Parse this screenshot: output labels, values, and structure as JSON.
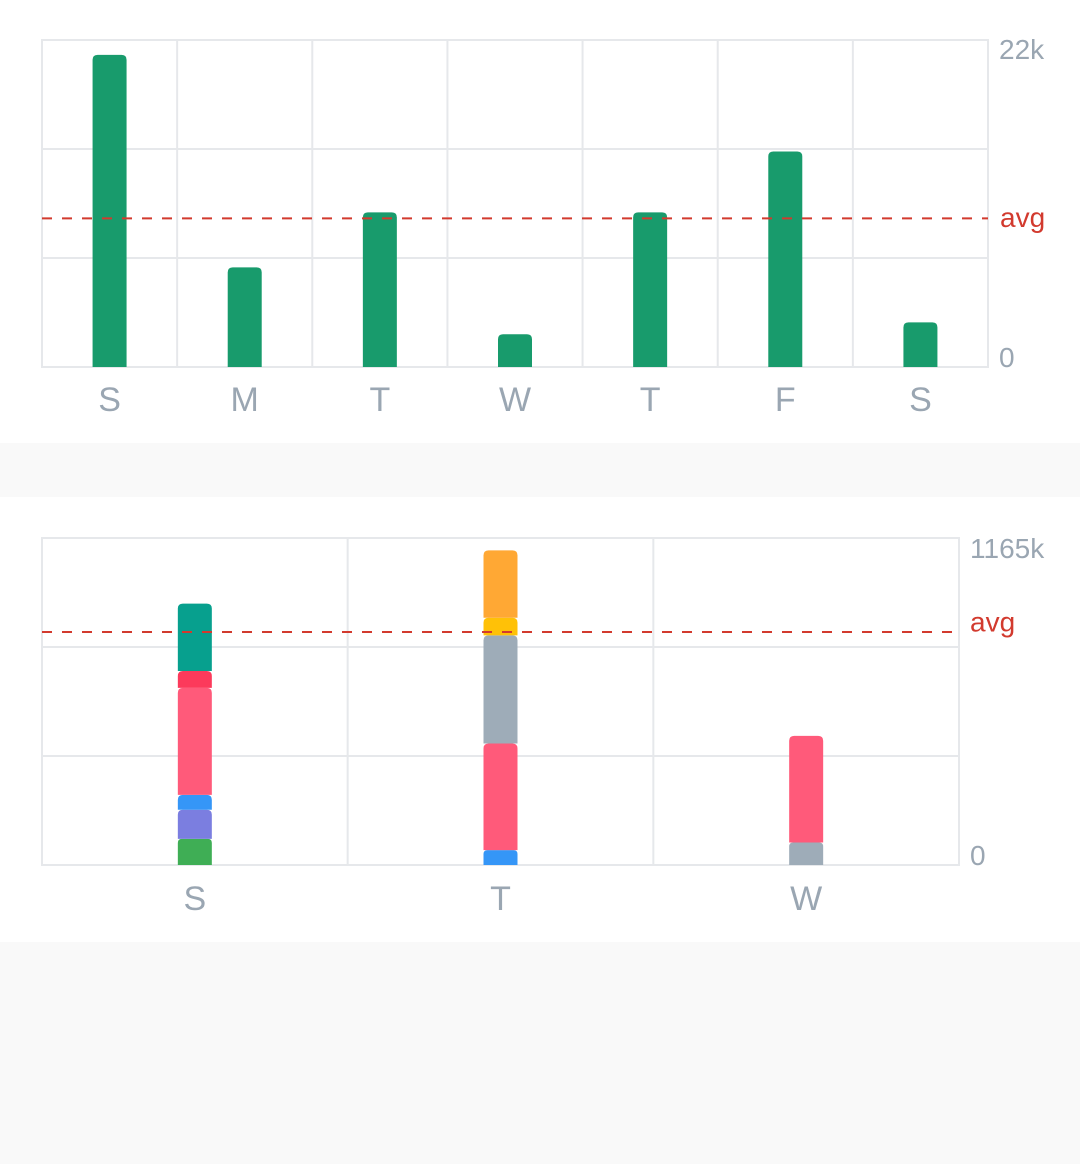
{
  "chart_data": [
    {
      "type": "bar",
      "title": "",
      "categories": [
        "S",
        "M",
        "T",
        "W",
        "T",
        "F",
        "S"
      ],
      "values": [
        21000,
        6700,
        10400,
        2200,
        10400,
        14500,
        3000
      ],
      "ylim": [
        0,
        22000
      ],
      "y_tick_labels": [
        "22k",
        "0"
      ],
      "average": 10000,
      "average_label": "avg",
      "colors": {
        "bar": "#189b6c",
        "average": "#d23a2e",
        "grid": "#e6e8eb"
      },
      "grid": true
    },
    {
      "type": "bar",
      "stacked": true,
      "title": "",
      "categories": [
        "S",
        "T",
        "W"
      ],
      "y_tick_labels": [
        "1165k",
        "0"
      ],
      "ylim": [
        0,
        1165000
      ],
      "average": 830000,
      "average_label": "avg",
      "stacks": [
        [
          {
            "value": 93000,
            "color": "#3fae55"
          },
          {
            "value": 104000,
            "color": "#7b7ee0"
          },
          {
            "value": 53000,
            "color": "#3596f7"
          },
          {
            "value": 381000,
            "color": "#ff5a7a"
          },
          {
            "value": 60000,
            "color": "#fc3a5b"
          },
          {
            "value": 240000,
            "color": "#07a08e"
          }
        ],
        [
          {
            "value": 53000,
            "color": "#3596f7"
          },
          {
            "value": 380000,
            "color": "#ff5a7a"
          },
          {
            "value": 385000,
            "color": "#9eacb8"
          },
          {
            "value": 63000,
            "color": "#ffc107"
          },
          {
            "value": 240000,
            "color": "#ffa834"
          }
        ],
        [
          {
            "value": 80000,
            "color": "#9eacb8"
          },
          {
            "value": 380000,
            "color": "#ff5a7a"
          }
        ]
      ],
      "colors": {
        "average": "#d23a2e",
        "grid": "#e6e8eb"
      },
      "grid": true
    }
  ]
}
